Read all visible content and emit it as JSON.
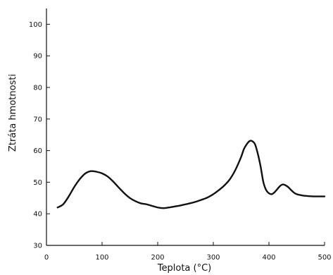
{
  "chart_data": {
    "type": "line",
    "title": "",
    "xlabel": "Teplota (°C)",
    "ylabel": "Ztráta hmotnosti",
    "xlim": [
      0,
      500
    ],
    "ylim": [
      30,
      105
    ],
    "xticks": [
      0,
      100,
      200,
      300,
      400,
      500
    ],
    "xtick_labels": [
      "0",
      "100",
      "200",
      "300",
      "400",
      "500"
    ],
    "yticks": [
      30,
      40,
      50,
      60,
      70,
      80,
      90,
      100
    ],
    "ytick_labels": [
      "30",
      "40",
      "50",
      "60",
      "70",
      "80",
      "90",
      "100"
    ],
    "grid": false,
    "legend": "none",
    "line_color": "#111111",
    "series": [
      {
        "x": [
          20,
          30,
          40,
          50,
          60,
          70,
          80,
          90,
          100,
          110,
          120,
          130,
          140,
          150,
          160,
          170,
          180,
          190,
          200,
          210,
          220,
          230,
          240,
          250,
          260,
          270,
          280,
          290,
          300,
          310,
          320,
          330,
          340,
          350,
          355,
          360,
          365,
          370,
          375,
          380,
          385,
          390,
          395,
          400,
          405,
          410,
          415,
          420,
          425,
          430,
          435,
          440,
          445,
          450,
          460,
          470,
          480,
          490,
          500
        ],
        "y": [
          42,
          43,
          45.5,
          48.5,
          51,
          52.8,
          53.5,
          53.3,
          52.8,
          51.8,
          50.2,
          48.3,
          46.5,
          45,
          44,
          43.3,
          43,
          42.5,
          42,
          41.8,
          42,
          42.3,
          42.6,
          43,
          43.4,
          43.9,
          44.5,
          45.2,
          46.2,
          47.5,
          49,
          51,
          54,
          58,
          60.5,
          62,
          63,
          63,
          62,
          59,
          55,
          50,
          47.5,
          46.5,
          46.2,
          46.8,
          47.8,
          48.8,
          49.3,
          49,
          48.4,
          47.5,
          46.7,
          46.2,
          45.8,
          45.6,
          45.5,
          45.5,
          45.5
        ]
      }
    ]
  }
}
